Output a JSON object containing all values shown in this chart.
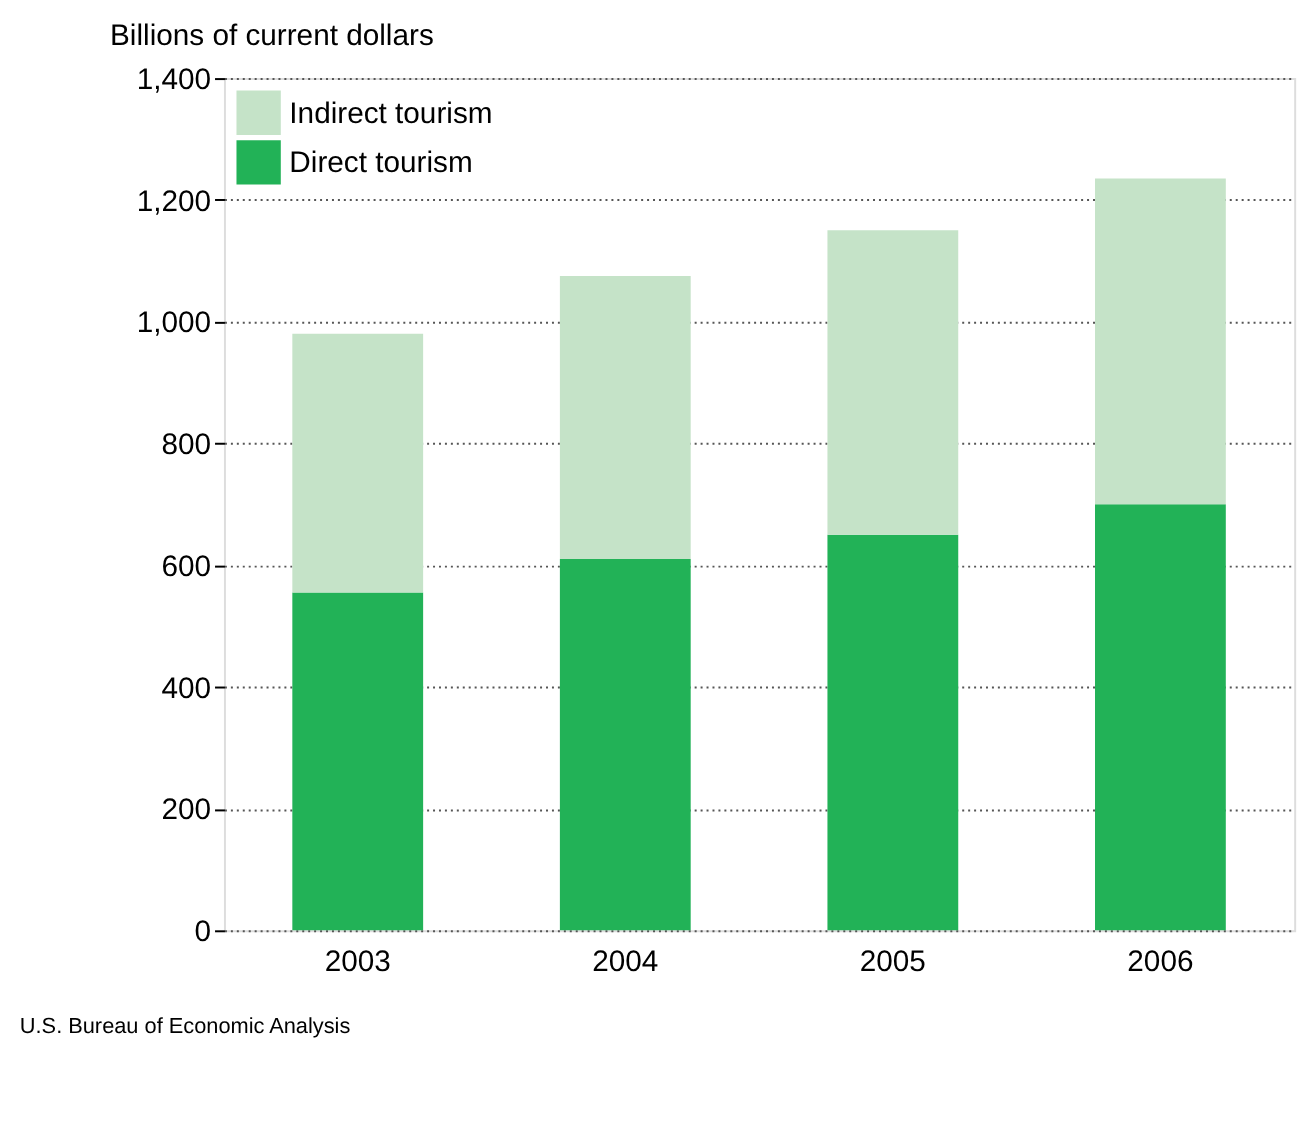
{
  "chart_data": {
    "type": "bar",
    "stacked": true,
    "ylabel": "Billions of current dollars",
    "categories": [
      "2003",
      "2004",
      "2005",
      "2006"
    ],
    "series": [
      {
        "name": "Direct  tourism",
        "color": "#22b257",
        "values": [
          555,
          610,
          650,
          700
        ]
      },
      {
        "name": "Indirect  tourism",
        "color": "#c5e3c8",
        "values": [
          425,
          465,
          500,
          535
        ]
      }
    ],
    "ylim": [
      0,
      1400
    ],
    "yticks": [
      0,
      200,
      400,
      600,
      800,
      {
        "value": 1000,
        "label": "1,000"
      },
      {
        "value": 1200,
        "label": "1,200"
      },
      {
        "value": 1400,
        "label": "1,400"
      }
    ],
    "grid": "y",
    "legend": "top left",
    "annotations": [
      "U.S. Bureau of Economic Analysis"
    ]
  }
}
